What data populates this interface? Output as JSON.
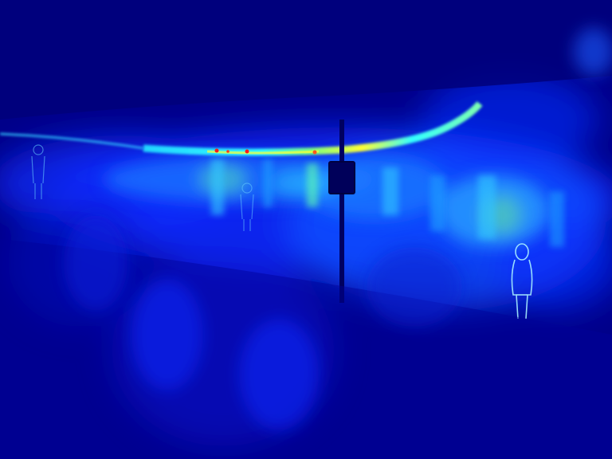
{
  "scene": {
    "kind": "heatmap-overlay",
    "palette": {
      "background": "#00008a",
      "deep": "#0000c8",
      "mid": "#0a2cff",
      "bright": "#1f7dff",
      "cyan": "#33ffff",
      "green": "#7dff7d",
      "yellow": "#ffff33",
      "red": "#ff1a1a"
    },
    "elements": {
      "ceiling_band": "ceiling-band",
      "canopy_edge": "canopy-edge",
      "sign_pole": "sign-pole",
      "sign_box": "sign-box",
      "people": [
        "person-silhouette-left",
        "person-silhouette-center",
        "person-silhouette-right"
      ]
    }
  }
}
